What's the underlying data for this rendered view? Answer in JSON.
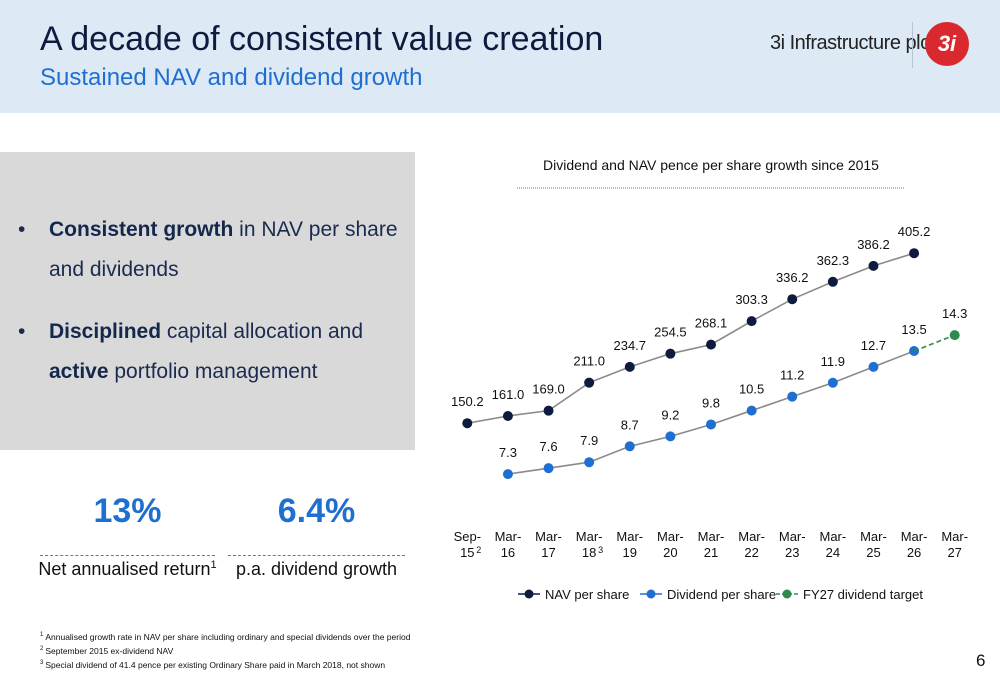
{
  "header": {
    "title": "A decade of consistent value creation",
    "subtitle": "Sustained NAV and dividend growth",
    "brand": "3i Infrastructure plc",
    "logo": "3i"
  },
  "bullets": [
    [
      {
        "text": "Consistent growth",
        "bold": true
      },
      {
        "text": " in NAV per share and dividends",
        "bold": false
      }
    ],
    [
      {
        "text": "Disciplined",
        "bold": true
      },
      {
        "text": " capital allocation and ",
        "bold": false
      },
      {
        "text": "active",
        "bold": true
      },
      {
        "text": " portfolio management",
        "bold": false
      }
    ]
  ],
  "stats": [
    {
      "value": "13%",
      "label": "Net annualised return",
      "note": "1"
    },
    {
      "value": "6.4%",
      "label": "p.a. dividend growth"
    }
  ],
  "footnotes": [
    {
      "mark": "1",
      "text": "Annualised growth rate in NAV per share including ordinary and special dividends over the period"
    },
    {
      "mark": "2",
      "text": "September 2015 ex-dividend NAV"
    },
    {
      "mark": "3",
      "text": "Special dividend of 41.4 pence per existing Ordinary Share paid in March 2018, not shown"
    }
  ],
  "page_number": "6",
  "chart_data": {
    "type": "line",
    "title": "Dividend and NAV pence per share growth since 2015",
    "categories": [
      "Sep-15",
      "Mar-16",
      "Mar-17",
      "Mar-18",
      "Mar-19",
      "Mar-20",
      "Mar-21",
      "Mar-22",
      "Mar-23",
      "Mar-24",
      "Mar-25",
      "Mar-26",
      "Mar-27"
    ],
    "category_notes": [
      "2",
      null,
      null,
      "3",
      null,
      null,
      null,
      null,
      null,
      null,
      null,
      null,
      null
    ],
    "ylim": [
      50,
      470
    ],
    "y2lim": [
      6.5,
      20.6
    ],
    "legend": "bottom",
    "series": [
      {
        "name": "NAV per share",
        "color": "#0d1b3e",
        "dashed": false,
        "values": [
          150.2,
          161.0,
          169.0,
          211.0,
          234.7,
          254.5,
          268.1,
          303.3,
          336.2,
          362.3,
          386.2,
          405.2,
          null
        ],
        "value_labels": [
          "150.2",
          "161.0",
          "169.0",
          "211.0",
          "234.7",
          "254.5",
          "268.1",
          "303.3",
          "336.2",
          "362.3",
          "386.2",
          "405.2",
          null
        ]
      },
      {
        "name": "Dividend per share",
        "color": "#1f6fd1",
        "dashed": false,
        "axis": "y2",
        "values": [
          null,
          7.3,
          7.6,
          7.9,
          8.7,
          9.2,
          9.8,
          10.5,
          11.2,
          11.9,
          12.7,
          13.5,
          null
        ],
        "value_labels": [
          null,
          "7.3",
          "7.6",
          "7.9",
          "8.7",
          "9.2",
          "9.8",
          "10.5",
          "11.2",
          "11.9",
          "12.7",
          "13.5",
          null
        ]
      },
      {
        "name": "FY27 dividend target",
        "color": "#2e8b4e",
        "dashed": true,
        "axis": "y2",
        "values": [
          null,
          null,
          null,
          null,
          null,
          null,
          null,
          null,
          null,
          null,
          null,
          13.5,
          14.3
        ],
        "value_labels": [
          null,
          null,
          null,
          null,
          null,
          null,
          null,
          null,
          null,
          null,
          null,
          null,
          "14.3"
        ]
      }
    ]
  }
}
